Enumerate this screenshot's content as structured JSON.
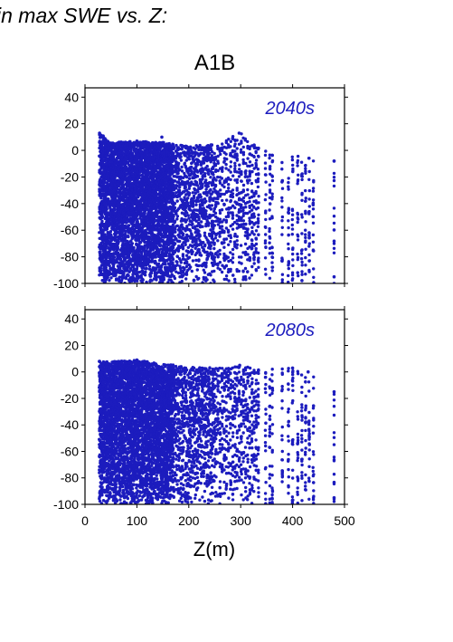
{
  "figure": {
    "header_title": "in max SWE vs. Z:",
    "scenario": "A1B",
    "xlabel": "Z(m)"
  },
  "colors": {
    "points": "#1c1cbe",
    "label": "#1c1cbe",
    "axis": "#000000"
  },
  "chart_data": [
    {
      "type": "scatter",
      "title": "2040s",
      "xlabel": "Z(m)",
      "ylabel": "",
      "xlim": [
        0,
        500
      ],
      "ylim": [
        -100,
        47
      ],
      "x_ticks": [
        0,
        100,
        200,
        300,
        400,
        500
      ],
      "y_ticks": [
        -100,
        -80,
        -60,
        -40,
        -20,
        0,
        20,
        40
      ],
      "grid": false,
      "series": [
        {
          "density_envelope": [
            {
              "x": 28,
              "y_max": 13
            },
            {
              "x": 50,
              "y_max": 6
            },
            {
              "x": 90,
              "y_max": 7
            },
            {
              "x": 150,
              "y_max": 6
            },
            {
              "x": 200,
              "y_max": 3
            },
            {
              "x": 250,
              "y_max": 5
            },
            {
              "x": 300,
              "y_max": 13
            },
            {
              "x": 340,
              "y_max": 0
            },
            {
              "x": 380,
              "y_max": -2
            },
            {
              "x": 440,
              "y_max": -6
            },
            {
              "x": 480,
              "y_max": -8
            }
          ],
          "notable_points": [
            {
              "x": 28,
              "y": 13
            },
            {
              "x": 32,
              "y": 10
            },
            {
              "x": 100,
              "y": 7
            },
            {
              "x": 148,
              "y": 10
            },
            {
              "x": 297,
              "y": 13
            },
            {
              "x": 326,
              "y": 4
            },
            {
              "x": 480,
              "y": -8
            },
            {
              "x": 480,
              "y": -95
            }
          ]
        }
      ]
    },
    {
      "type": "scatter",
      "title": "2080s",
      "xlabel": "Z(m)",
      "ylabel": "",
      "xlim": [
        0,
        500
      ],
      "ylim": [
        -100,
        47
      ],
      "x_ticks": [
        0,
        100,
        200,
        300,
        400,
        500
      ],
      "y_ticks": [
        -100,
        -80,
        -60,
        -40,
        -20,
        0,
        20,
        40
      ],
      "grid": false,
      "series": [
        {
          "density_envelope": [
            {
              "x": 28,
              "y_max": 8
            },
            {
              "x": 60,
              "y_max": 8
            },
            {
              "x": 100,
              "y_max": 9
            },
            {
              "x": 150,
              "y_max": 6
            },
            {
              "x": 200,
              "y_max": 4
            },
            {
              "x": 250,
              "y_max": 3
            },
            {
              "x": 300,
              "y_max": 5
            },
            {
              "x": 340,
              "y_max": 2
            },
            {
              "x": 400,
              "y_max": 3
            },
            {
              "x": 440,
              "y_max": -2
            },
            {
              "x": 480,
              "y_max": -15
            }
          ],
          "notable_points": [
            {
              "x": 28,
              "y": 8
            },
            {
              "x": 100,
              "y": 9
            },
            {
              "x": 120,
              "y": 5
            },
            {
              "x": 298,
              "y": 5
            },
            {
              "x": 400,
              "y": 3
            },
            {
              "x": 430,
              "y": 0
            },
            {
              "x": 480,
              "y": -15
            },
            {
              "x": 480,
              "y": -95
            }
          ]
        }
      ]
    }
  ]
}
